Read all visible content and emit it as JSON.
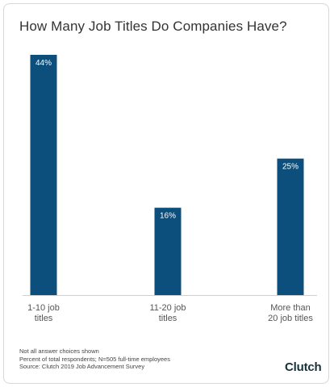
{
  "chart_data": {
    "type": "bar",
    "title": "How Many Job Titles Do Companies Have?",
    "categories": [
      "1-10 job titles",
      "11-20 job titles",
      "More than 20 job titles"
    ],
    "category_lines": [
      [
        "1-10 job",
        "titles"
      ],
      [
        "11-20 job",
        "titles"
      ],
      [
        "More than",
        "20 job titles"
      ]
    ],
    "values": [
      44,
      16,
      25
    ],
    "data_labels": [
      "44%",
      "16%",
      "25%"
    ],
    "ylim": [
      0,
      44
    ],
    "bar_color": "#0d4f7c",
    "grid": false,
    "legend": "none"
  },
  "footnotes": [
    "Not all answer choices shown",
    "Percent of total respondents; N=505 full-time employees",
    "Source: Clutch 2019 Job Advancement Survey"
  ],
  "brand": "Clutch",
  "colors": {
    "bar": "#0d4f7c",
    "title": "#333333",
    "axis": "#cfcfcf"
  }
}
